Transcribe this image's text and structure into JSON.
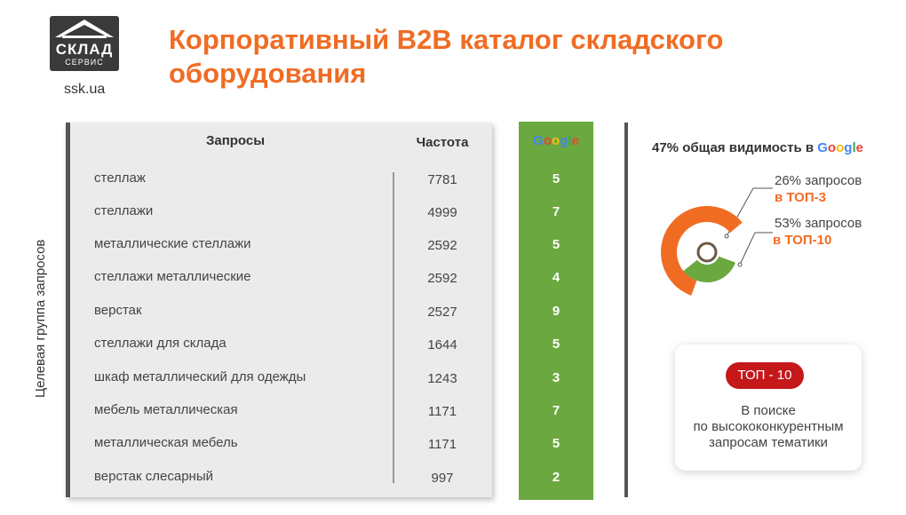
{
  "header": {
    "logo_line1": "СКЛАД",
    "logo_line2": "СЕРВИС",
    "site": "ssk.ua",
    "title": "Корпоративный B2B каталог складского оборудования"
  },
  "table": {
    "side_label": "Целевая группа запросов",
    "col_query": "Запросы",
    "col_freq": "Частота",
    "google_logo": [
      "G",
      "o",
      "o",
      "g",
      "l",
      "e"
    ],
    "rows": [
      {
        "query": "стеллаж",
        "freq": "7781",
        "pos": "5"
      },
      {
        "query": "стеллажи",
        "freq": "4999",
        "pos": "7"
      },
      {
        "query": "металлические стеллажи",
        "freq": "2592",
        "pos": "5"
      },
      {
        "query": "стеллажи металлические",
        "freq": "2592",
        "pos": "4"
      },
      {
        "query": "верстак",
        "freq": "2527",
        "pos": "9"
      },
      {
        "query": "стеллажи для склада",
        "freq": "1644",
        "pos": "5"
      },
      {
        "query": "шкаф металлический для одежды",
        "freq": "1243",
        "pos": "3"
      },
      {
        "query": "мебель металлическая",
        "freq": "1171",
        "pos": "7"
      },
      {
        "query": "металлическая мебель",
        "freq": "1171",
        "pos": "5"
      },
      {
        "query": "верстак слесарный",
        "freq": "997",
        "pos": "2"
      }
    ]
  },
  "visibility": {
    "title_prefix": "47% общая видимость в",
    "top3_line1": "26% запросов",
    "top3_line2": "в ТОП-3",
    "top10_line1": "53% запросов",
    "top10_line2": "в ТОП-10",
    "total_pct": 47,
    "top3_pct": 26,
    "top10_pct": 53
  },
  "top_card": {
    "badge": "ТОП - 10",
    "line1": "В поиске",
    "line2": "по высококонкурентным",
    "line3": "запросам тематики"
  },
  "colors": {
    "accent": "#f06c23",
    "google_green": "#6ba840",
    "dark": "#555555",
    "badge_red": "#c4181b",
    "donut_brown": "#6b5a45"
  }
}
